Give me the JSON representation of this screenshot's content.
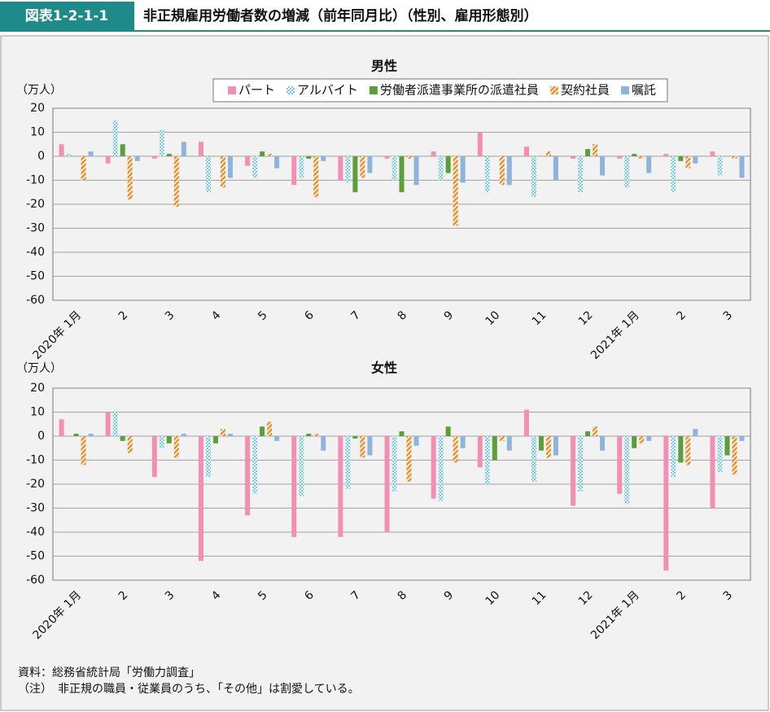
{
  "header": {
    "label": "図表1-2-1-1",
    "title": "非正規雇用労働者数の増減（前年同月比）（性別、雇用形態別）"
  },
  "chart_data": [
    {
      "type": "bar",
      "title": "男性",
      "ylabel": "（万人）",
      "legend": "top-right",
      "grid": true,
      "categories": [
        "2020年 1月",
        "2",
        "3",
        "4",
        "5",
        "6",
        "7",
        "8",
        "9",
        "10",
        "11",
        "12",
        "2021年 1月",
        "2",
        "3"
      ],
      "ylim": [
        -60,
        20
      ],
      "yticks": [
        -60,
        -50,
        -40,
        -30,
        -20,
        -10,
        0,
        10,
        20
      ],
      "series": [
        {
          "name": "パート",
          "color": "#f48fb4",
          "values": [
            5,
            -3,
            -1,
            6,
            -4,
            -12,
            -10,
            -1,
            2,
            10,
            4,
            -1,
            -1,
            1,
            2
          ]
        },
        {
          "name": "アルバイト",
          "color": "#6ccdee",
          "pattern": "checker",
          "values": [
            1,
            15,
            11,
            -15,
            -9,
            -9,
            -11,
            -10,
            -10,
            -15,
            -17,
            -15,
            -13,
            -15,
            -8
          ]
        },
        {
          "name": "労働者派遣事業所の派遣社員",
          "color": "#5c9e3a",
          "values": [
            0,
            5,
            1,
            0,
            2,
            -1,
            -15,
            -15,
            -7,
            0,
            0,
            3,
            1,
            -2,
            0
          ]
        },
        {
          "name": "契約社員",
          "color": "#f08a24",
          "pattern": "diagonal",
          "values": [
            -10,
            -18,
            -21,
            -13,
            1,
            -17,
            -9,
            -1,
            -29,
            -12,
            2,
            5,
            -1,
            -5,
            -1
          ]
        },
        {
          "name": "嘱託",
          "color": "#8fb4dc",
          "values": [
            2,
            -2,
            6,
            -9,
            -5,
            -2,
            -7,
            -12,
            -11,
            -12,
            -10,
            -8,
            -7,
            -3,
            -9
          ]
        }
      ]
    },
    {
      "type": "bar",
      "title": "女性",
      "ylabel": "（万人）",
      "grid": true,
      "categories": [
        "2020年 1月",
        "2",
        "3",
        "4",
        "5",
        "6",
        "7",
        "8",
        "9",
        "10",
        "11",
        "12",
        "2021年 1月",
        "2",
        "3"
      ],
      "ylim": [
        -60,
        20
      ],
      "yticks": [
        -60,
        -50,
        -40,
        -30,
        -20,
        -10,
        0,
        10,
        20
      ],
      "series": [
        {
          "name": "パート",
          "color": "#f48fb4",
          "values": [
            7,
            10,
            -17,
            -52,
            -33,
            -42,
            -42,
            -40,
            -26,
            -13,
            11,
            -29,
            -24,
            -56,
            -30
          ]
        },
        {
          "name": "アルバイト",
          "color": "#6ccdee",
          "pattern": "checker",
          "values": [
            0,
            10,
            -5,
            -17,
            -24,
            -25,
            -22,
            -23,
            -27,
            -20,
            -19,
            -23,
            -28,
            -17,
            -15
          ]
        },
        {
          "name": "労働者派遣事業所の派遣社員",
          "color": "#5c9e3a",
          "values": [
            1,
            -2,
            -3,
            -3,
            4,
            1,
            -1,
            2,
            4,
            -10,
            -6,
            2,
            -5,
            -11,
            -8
          ]
        },
        {
          "name": "契約社員",
          "color": "#f08a24",
          "pattern": "diagonal",
          "values": [
            -12,
            -7,
            -9,
            3,
            6,
            1,
            -9,
            -19,
            -11,
            -2,
            -9,
            4,
            -3,
            -12,
            -16
          ]
        },
        {
          "name": "嘱託",
          "color": "#8fb4dc",
          "values": [
            1,
            0,
            1,
            1,
            -2,
            -6,
            -8,
            -4,
            -5,
            -6,
            -8,
            -6,
            -2,
            3,
            -2
          ]
        }
      ]
    }
  ],
  "notes": [
    "資料：総務省統計局「労働力調査」",
    "（注）　非正規の職員・従業員のうち、「その他」は割愛している。"
  ]
}
